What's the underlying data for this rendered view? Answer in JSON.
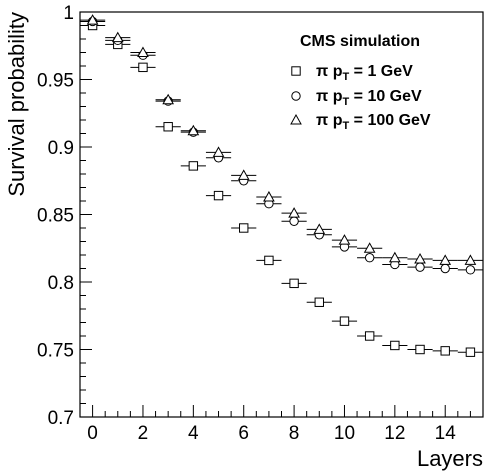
{
  "chart_data": {
    "type": "scatter",
    "xlabel": "Layers",
    "ylabel": "Survival probability",
    "annotation": "CMS simulation",
    "xlim": [
      -0.5,
      15.5
    ],
    "ylim": [
      0.7,
      1.0
    ],
    "x_ticks": [
      0,
      2,
      4,
      6,
      8,
      10,
      12,
      14
    ],
    "x_tick_labels": [
      "0",
      "2",
      "4",
      "6",
      "8",
      "10",
      "12",
      "14"
    ],
    "y_ticks": [
      0.7,
      0.75,
      0.8,
      0.85,
      0.9,
      0.95,
      1.0
    ],
    "y_tick_labels": [
      "0.7",
      "0.75",
      "0.8",
      "0.85",
      "0.9",
      "0.95",
      "1"
    ],
    "x_error": 0.5,
    "grid": false,
    "legend_position": "top-right",
    "x": [
      0,
      1,
      2,
      3,
      4,
      5,
      6,
      7,
      8,
      9,
      10,
      11,
      12,
      13,
      14,
      15
    ],
    "series": [
      {
        "legend_prefix": "π p",
        "legend_sub": "T",
        "legend_suffix": " = 1 GeV",
        "marker": "square",
        "values": [
          0.99,
          0.976,
          0.959,
          0.915,
          0.886,
          0.864,
          0.84,
          0.816,
          0.799,
          0.785,
          0.771,
          0.76,
          0.753,
          0.75,
          0.749,
          0.748
        ]
      },
      {
        "legend_prefix": "π p",
        "legend_sub": "T",
        "legend_suffix": " = 10 GeV",
        "marker": "circle",
        "values": [
          0.993,
          0.979,
          0.968,
          0.934,
          0.911,
          0.892,
          0.875,
          0.858,
          0.845,
          0.835,
          0.826,
          0.818,
          0.813,
          0.811,
          0.81,
          0.809
        ]
      },
      {
        "legend_prefix": "π p",
        "legend_sub": "T",
        "legend_suffix": " = 100 GeV",
        "marker": "triangle",
        "values": [
          0.994,
          0.981,
          0.97,
          0.935,
          0.912,
          0.896,
          0.879,
          0.863,
          0.851,
          0.839,
          0.831,
          0.825,
          0.818,
          0.817,
          0.816,
          0.816
        ]
      }
    ]
  }
}
